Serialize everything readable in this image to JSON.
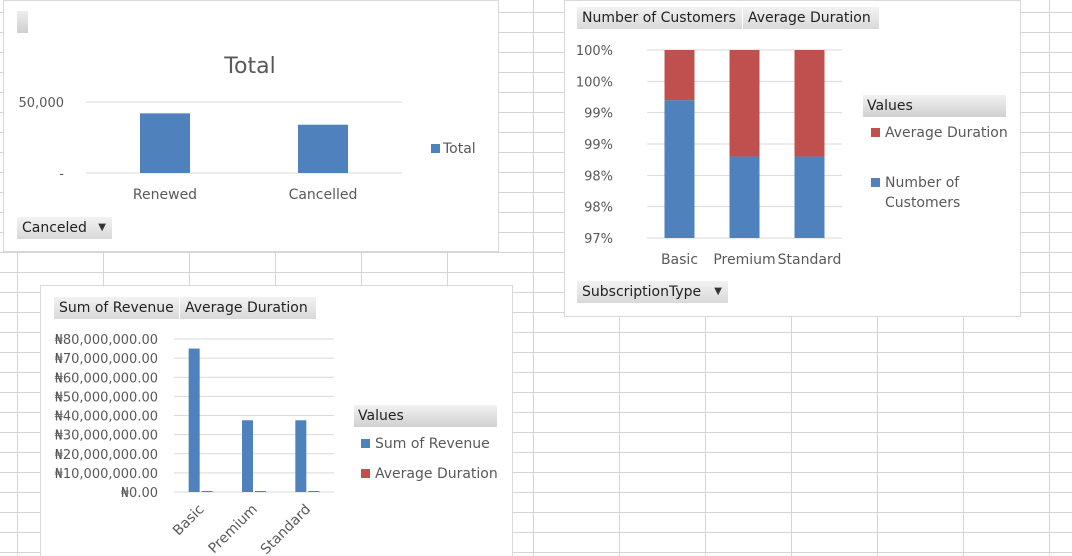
{
  "colors": {
    "blue": "#4f81bd",
    "red": "#c0504d",
    "grid": "#d9d9d9",
    "text": "#595959"
  },
  "chart1": {
    "field_button": "Canceled",
    "chart_data": {
      "type": "bar",
      "title": "Total",
      "categories": [
        "Renewed",
        "Cancelled"
      ],
      "series": [
        {
          "name": "Total",
          "values": [
            42000,
            34000
          ]
        }
      ],
      "ylim": [
        0,
        50000
      ],
      "yticks": [
        {
          "value": 0,
          "label": "-"
        },
        {
          "value": 50000,
          "label": "50,000"
        }
      ],
      "legend": "right",
      "grid": true
    }
  },
  "chart2": {
    "value_buttons": [
      "Number of Customers",
      "Average Duration"
    ],
    "axis_button": "SubscriptionType",
    "legend_title": "Values",
    "chart_data": {
      "type": "bar",
      "stacked": "percent",
      "categories": [
        "Basic",
        "Premium",
        "Standard"
      ],
      "series": [
        {
          "name": "Number of Customers",
          "values": [
            99.2,
            98.3,
            98.3
          ]
        },
        {
          "name": "Average Duration",
          "values": [
            0.8,
            1.7,
            1.7
          ]
        }
      ],
      "ylim": [
        97,
        100
      ],
      "ytick_labels": [
        "97%",
        "98%",
        "98%",
        "99%",
        "99%",
        "100%",
        "100%"
      ],
      "legend": "right",
      "grid": true
    }
  },
  "chart3": {
    "value_buttons": [
      "Sum of Revenue",
      "Average Duration"
    ],
    "legend_title": "Values",
    "chart_data": {
      "type": "bar",
      "categories": [
        "Basic",
        "Premium",
        "Standard"
      ],
      "series": [
        {
          "name": "Sum of Revenue",
          "values": [
            75000000,
            37500000,
            37500000
          ]
        },
        {
          "name": "Average Duration",
          "values": [
            500000,
            500000,
            500000
          ]
        }
      ],
      "ylim": [
        0,
        80000000
      ],
      "ytick_labels": [
        "₦0.00",
        "₦10,000,000.00",
        "₦20,000,000.00",
        "₦30,000,000.00",
        "₦40,000,000.00",
        "₦50,000,000.00",
        "₦60,000,000.00",
        "₦70,000,000.00",
        "₦80,000,000.00"
      ],
      "legend": "right",
      "grid": true
    }
  }
}
